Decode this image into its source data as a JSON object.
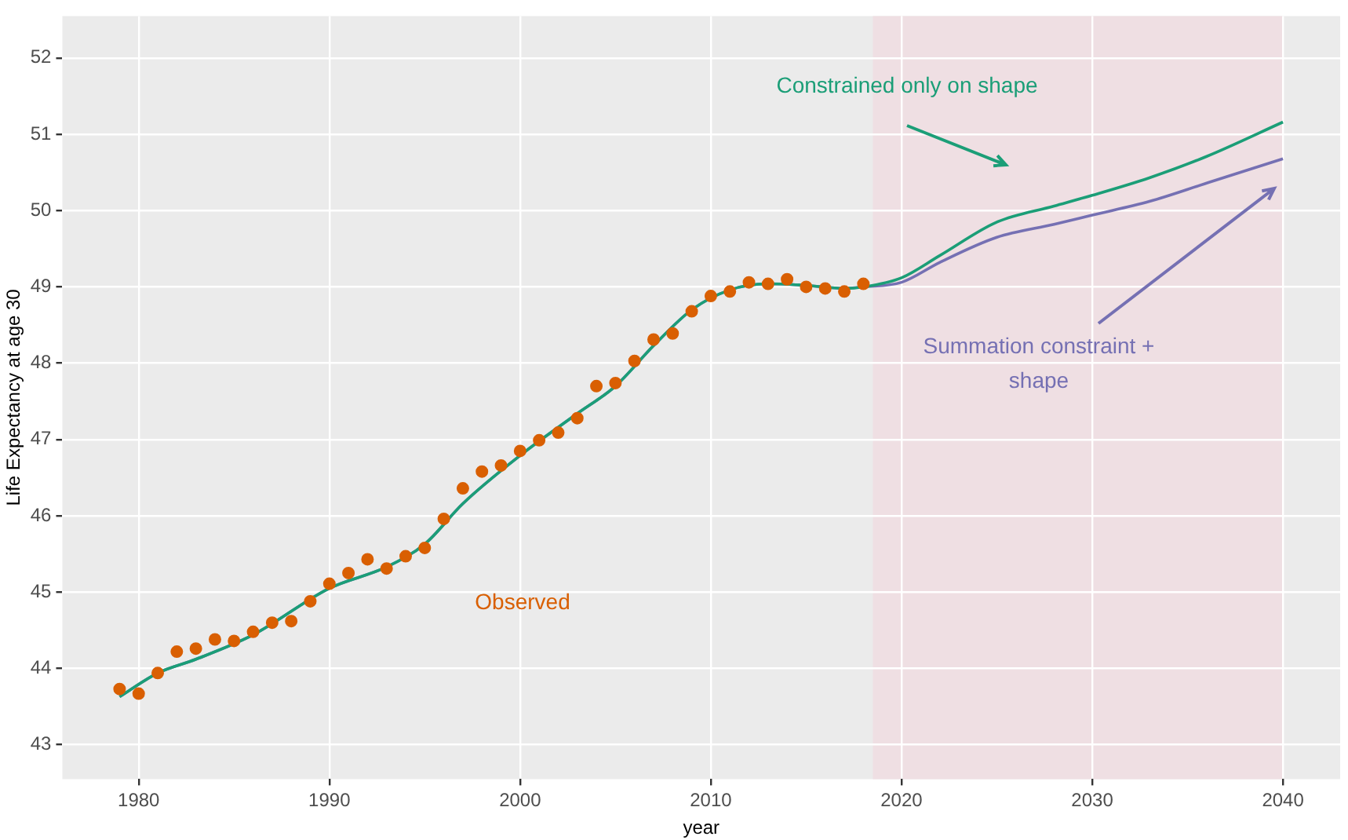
{
  "chart_data": {
    "type": "line",
    "xlabel": "year",
    "ylabel": "Life Expectancy at age 30",
    "xlim": [
      1976,
      2043
    ],
    "xticks": [
      1980,
      1990,
      2000,
      2010,
      2020,
      2030,
      2040
    ],
    "ylim": [
      42.55,
      52.55
    ],
    "yticks": [
      43,
      44,
      45,
      46,
      47,
      48,
      49,
      50,
      51,
      52
    ],
    "grid": true,
    "legend": false,
    "bands": [
      {
        "axis": "x",
        "from": 2018.5,
        "to": 2040,
        "color": "#efdfe3"
      }
    ],
    "series": [
      {
        "name": "Observed",
        "type": "scatter",
        "color": "#d95f02",
        "marker": "circle",
        "x": [
          1979,
          1980,
          1981,
          1982,
          1983,
          1984,
          1985,
          1986,
          1987,
          1988,
          1989,
          1990,
          1991,
          1992,
          1993,
          1994,
          1995,
          1996,
          1997,
          1998,
          1999,
          2000,
          2001,
          2002,
          2003,
          2004,
          2005,
          2006,
          2007,
          2008,
          2009,
          2010,
          2011,
          2012,
          2013,
          2014,
          2015,
          2016,
          2017,
          2018
        ],
        "values": [
          43.73,
          43.67,
          43.94,
          44.22,
          44.26,
          44.38,
          44.36,
          44.48,
          44.6,
          44.62,
          44.88,
          45.11,
          45.25,
          45.43,
          45.31,
          45.47,
          45.58,
          45.96,
          46.36,
          46.58,
          46.66,
          46.85,
          46.99,
          47.09,
          47.28,
          47.7,
          47.74,
          48.03,
          48.31,
          48.39,
          48.68,
          48.88,
          48.94,
          49.06,
          49.04,
          49.1,
          49.0,
          48.98,
          48.94,
          49.04
        ]
      },
      {
        "name": "Constrained only on shape",
        "color": "#1b9e77",
        "x": [
          1979,
          1981,
          1983,
          1986,
          1990,
          1993,
          1995,
          1997,
          2000,
          2003,
          2005,
          2007,
          2009,
          2011,
          2013,
          2015,
          2017,
          2018,
          2020,
          2022,
          2025,
          2028,
          2030,
          2033,
          2036,
          2040
        ],
        "values": [
          43.63,
          43.94,
          44.12,
          44.44,
          45.05,
          45.33,
          45.63,
          46.16,
          46.79,
          47.34,
          47.7,
          48.23,
          48.7,
          48.96,
          49.04,
          49.02,
          48.98,
          49.0,
          49.12,
          49.41,
          49.85,
          50.06,
          50.2,
          50.43,
          50.71,
          51.16
        ]
      },
      {
        "name": "Summation constraint + shape",
        "color": "#7570b3",
        "x": [
          1979,
          1981,
          1983,
          1986,
          1990,
          1993,
          1995,
          1997,
          2000,
          2003,
          2005,
          2007,
          2009,
          2011,
          2013,
          2015,
          2017,
          2018,
          2020,
          2022,
          2025,
          2028,
          2030,
          2033,
          2036,
          2040
        ],
        "values": [
          43.63,
          43.94,
          44.12,
          44.44,
          45.05,
          45.33,
          45.63,
          46.16,
          46.79,
          47.34,
          47.7,
          48.23,
          48.7,
          48.96,
          49.04,
          49.02,
          48.98,
          49.0,
          49.06,
          49.32,
          49.65,
          49.82,
          49.94,
          50.12,
          50.36,
          50.68
        ]
      }
    ]
  }
}
